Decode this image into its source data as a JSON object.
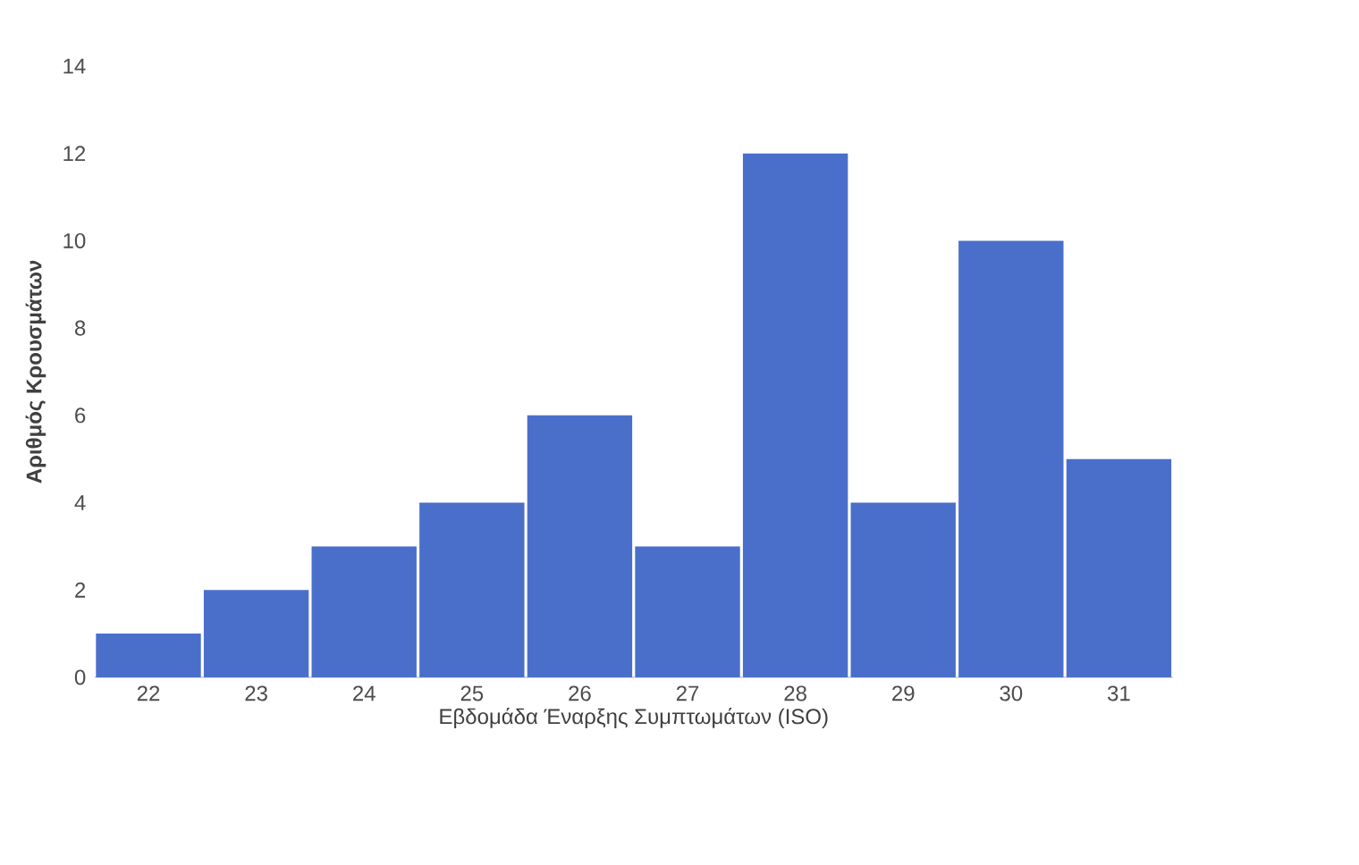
{
  "chart_data": {
    "type": "bar",
    "xlabel": "Εβδομάδα Έναρξης Συμπτωμάτων (ISO)",
    "ylabel": "Αριθμός Κρουσμάτων",
    "categories": [
      "22",
      "23",
      "24",
      "25",
      "26",
      "27",
      "28",
      "29",
      "30",
      "31"
    ],
    "values": [
      1,
      2,
      3,
      4,
      6,
      3,
      12,
      4,
      10,
      5
    ],
    "color": "#4a6fcb",
    "ylim": [
      0,
      14
    ],
    "yticks": [
      0,
      2,
      4,
      6,
      8,
      10,
      12,
      14
    ]
  }
}
